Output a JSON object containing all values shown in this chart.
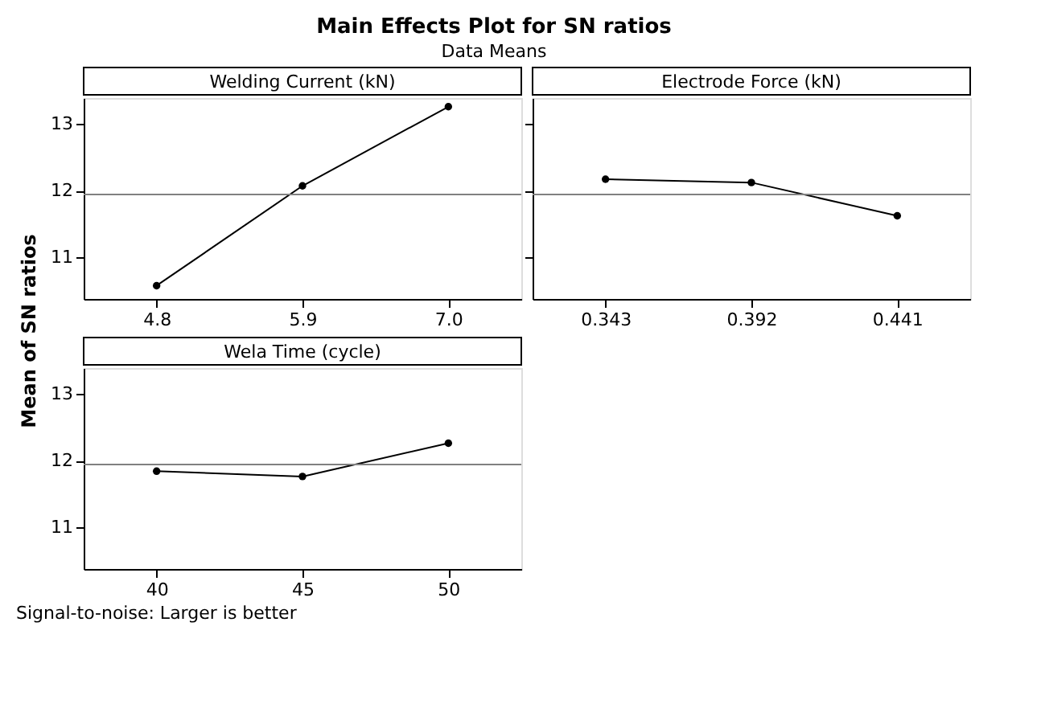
{
  "chart_data": [
    {
      "type": "line",
      "title": "Main Effects Plot for SN ratios",
      "subtitle": "Data Means",
      "ylabel": "Mean of SN ratios",
      "xlabel": "Welding Current (kN)",
      "categories": [
        "4.8",
        "5.9",
        "7.0"
      ],
      "values": [
        10.57,
        12.07,
        13.26
      ],
      "ylim": [
        10.37,
        13.39
      ],
      "yticks": [
        11,
        12,
        13
      ],
      "ref_lines": [
        {
          "axis": "y",
          "value": 11.94,
          "color": "#808080"
        }
      ],
      "marker": "circle",
      "grid": false
    },
    {
      "type": "line",
      "xlabel": "Electrode Force (kN)",
      "categories": [
        "0.343",
        "0.392",
        "0.441"
      ],
      "values": [
        12.17,
        12.12,
        11.62
      ],
      "ylim": [
        10.37,
        13.39
      ],
      "yticks": [
        11,
        12,
        13
      ],
      "ref_lines": [
        {
          "axis": "y",
          "value": 11.94,
          "color": "#808080"
        }
      ],
      "marker": "circle",
      "grid": false,
      "tick_labels": "x"
    },
    {
      "type": "line",
      "xlabel": "Wela Time (cycle)",
      "categories": [
        "40",
        "45",
        "50"
      ],
      "values": [
        11.84,
        11.76,
        12.26
      ],
      "ylim": [
        10.37,
        13.39
      ],
      "yticks": [
        11,
        12,
        13
      ],
      "ref_lines": [
        {
          "axis": "y",
          "value": 11.94,
          "color": "#808080"
        }
      ],
      "marker": "circle",
      "grid": false,
      "annotations": [
        "Signal-to-noise: Larger is better"
      ]
    }
  ]
}
